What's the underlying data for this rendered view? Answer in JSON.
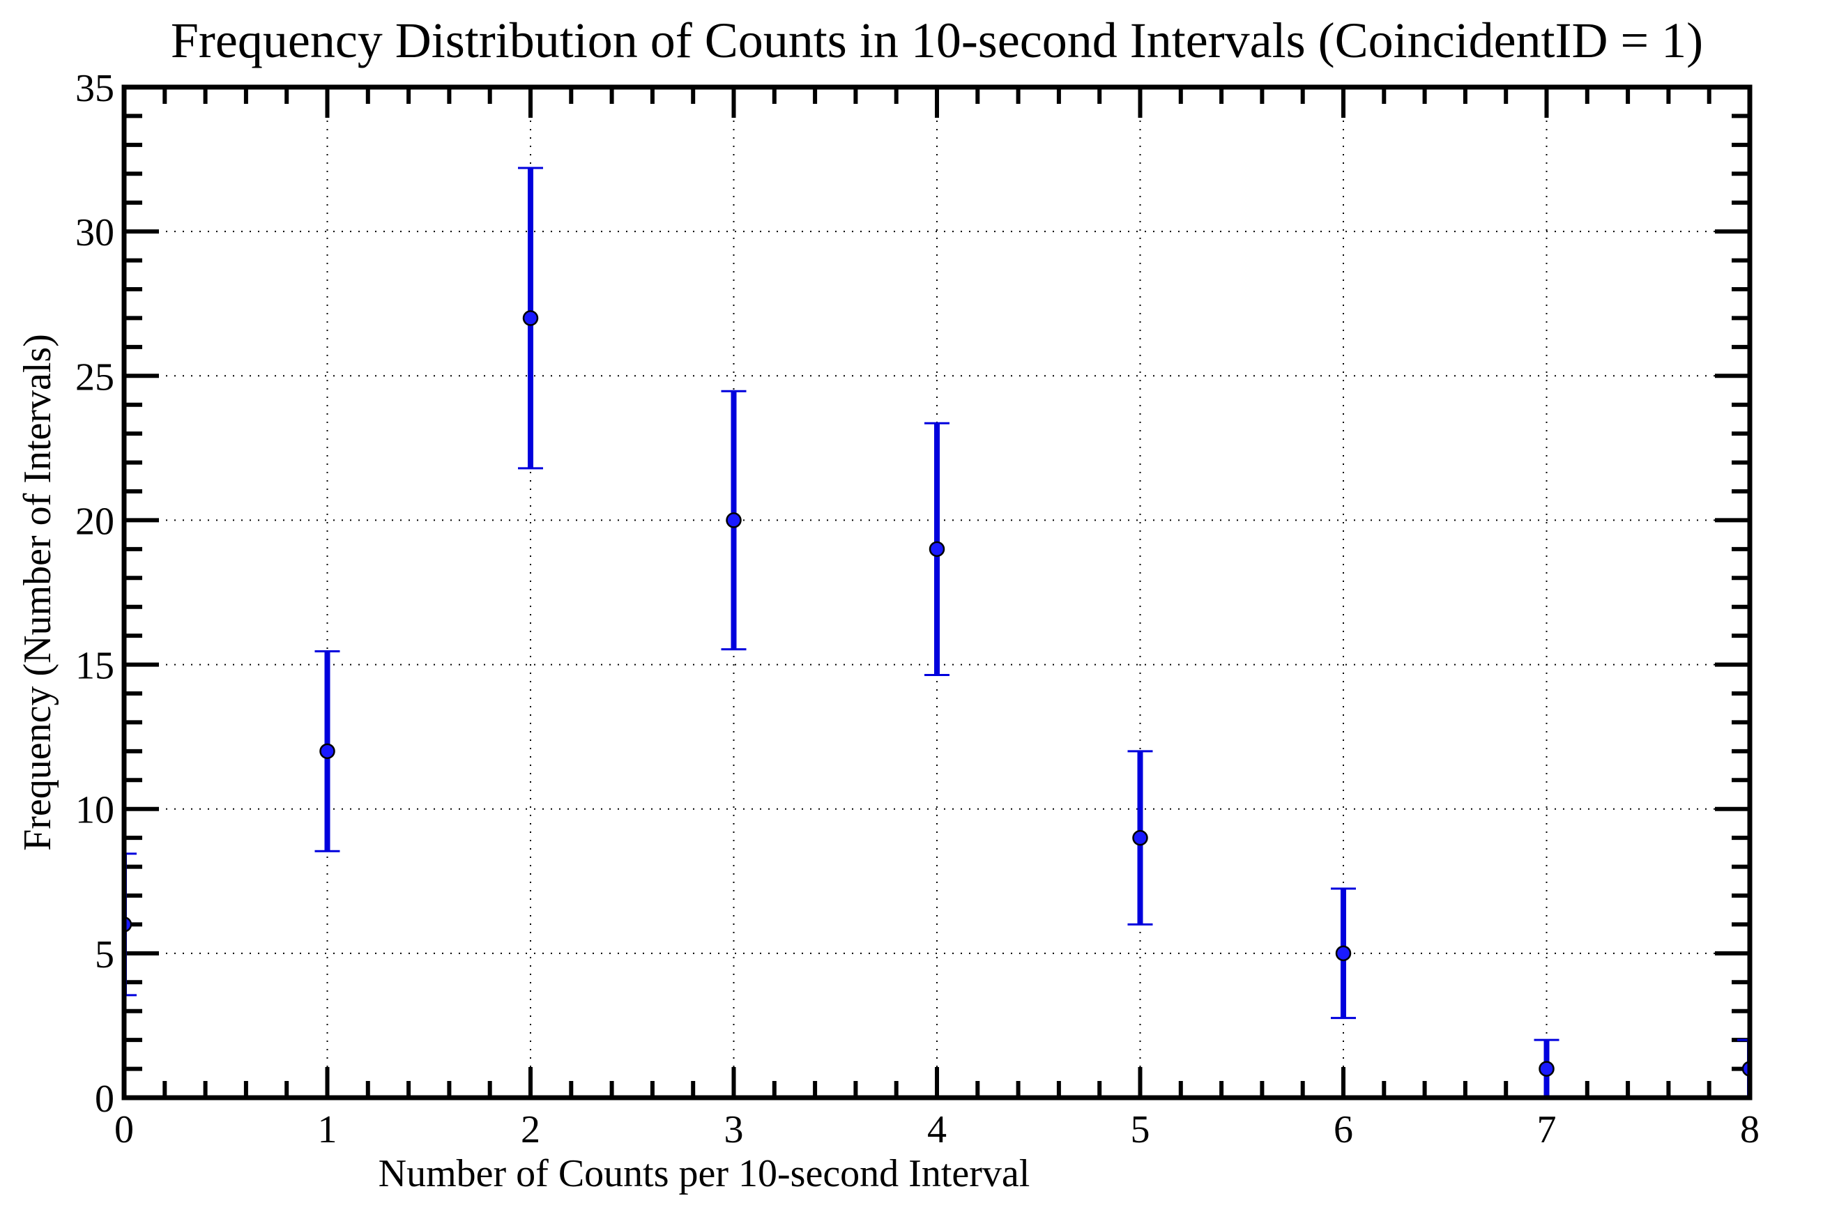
{
  "chart_data": {
    "type": "scatter",
    "title": "Frequency Distribution of Counts in 10-second Intervals (CoincidentID = 1)",
    "xlabel": "Number of Counts per 10-second Interval",
    "ylabel": "Frequency (Number of Intervals)",
    "xlim": [
      0,
      8
    ],
    "ylim": [
      0,
      35
    ],
    "xticks": [
      "0",
      "1",
      "2",
      "3",
      "4",
      "5",
      "6",
      "7",
      "8"
    ],
    "yticks": [
      "0",
      "5",
      "10",
      "15",
      "20",
      "25",
      "30",
      "35"
    ],
    "grid": true,
    "error_bars": true,
    "series": [
      {
        "color": "#0000dd",
        "marker_color": "#1a1aff",
        "points": [
          {
            "x": 0,
            "y": 6,
            "err": 2.45
          },
          {
            "x": 1,
            "y": 12,
            "err": 3.46
          },
          {
            "x": 2,
            "y": 27,
            "err": 5.2
          },
          {
            "x": 3,
            "y": 20,
            "err": 4.47
          },
          {
            "x": 4,
            "y": 19,
            "err": 4.36
          },
          {
            "x": 5,
            "y": 9,
            "err": 3.0
          },
          {
            "x": 6,
            "y": 5,
            "err": 2.24
          },
          {
            "x": 7,
            "y": 1,
            "err": 1.0
          },
          {
            "x": 8,
            "y": 1,
            "err": 1.0
          }
        ]
      }
    ]
  }
}
